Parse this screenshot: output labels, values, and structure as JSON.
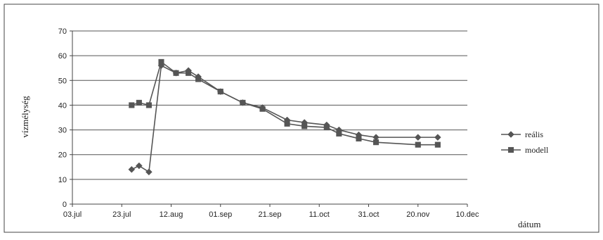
{
  "chart_data": {
    "type": "line",
    "title": "",
    "xlabel": "dátum",
    "ylabel": "vízmélység",
    "ylim": [
      0,
      70
    ],
    "yticks": [
      0,
      10,
      20,
      30,
      40,
      50,
      60,
      70
    ],
    "xlim": [
      "2024-07-03",
      "2024-12-10"
    ],
    "xticks": [
      "2024-07-03",
      "2024-07-23",
      "2024-08-12",
      "2024-09-01",
      "2024-09-21",
      "2024-10-11",
      "2024-10-31",
      "2024-11-20",
      "2024-12-10"
    ],
    "xtick_labels": [
      "03.jul",
      "23.jul",
      "12.aug",
      "01.sep",
      "21.sep",
      "11.oct",
      "31.oct",
      "20.nov",
      "10.dec"
    ],
    "grid": "horizontal",
    "legend_position": "right",
    "series": [
      {
        "name": "reális",
        "marker": "diamond",
        "color": "#555555",
        "points": [
          [
            "2024-07-27",
            14
          ],
          [
            "2024-07-30",
            15.5
          ],
          [
            "2024-08-03",
            13
          ],
          [
            "2024-08-08",
            56
          ],
          [
            "2024-08-14",
            53
          ],
          [
            "2024-08-19",
            54
          ],
          [
            "2024-08-23",
            51.5
          ],
          [
            "2024-09-01",
            45.5
          ],
          [
            "2024-09-10",
            41
          ],
          [
            "2024-09-18",
            39
          ],
          [
            "2024-09-28",
            34
          ],
          [
            "2024-10-05",
            33
          ],
          [
            "2024-10-14",
            32
          ],
          [
            "2024-10-19",
            30
          ],
          [
            "2024-10-27",
            28
          ],
          [
            "2024-11-03",
            27
          ],
          [
            "2024-11-20",
            27
          ],
          [
            "2024-11-28",
            27
          ]
        ]
      },
      {
        "name": "modell",
        "marker": "square",
        "color": "#555555",
        "points": [
          [
            "2024-07-27",
            40
          ],
          [
            "2024-07-30",
            41
          ],
          [
            "2024-08-03",
            40
          ],
          [
            "2024-08-08",
            57.5
          ],
          [
            "2024-08-14",
            53
          ],
          [
            "2024-08-19",
            53
          ],
          [
            "2024-08-23",
            50.5
          ],
          [
            "2024-09-01",
            45.5
          ],
          [
            "2024-09-10",
            41
          ],
          [
            "2024-09-18",
            38.5
          ],
          [
            "2024-09-28",
            32.5
          ],
          [
            "2024-10-05",
            31.5
          ],
          [
            "2024-10-14",
            31
          ],
          [
            "2024-10-19",
            28.5
          ],
          [
            "2024-10-27",
            26.5
          ],
          [
            "2024-11-03",
            25
          ],
          [
            "2024-11-20",
            24
          ],
          [
            "2024-11-28",
            24
          ]
        ]
      }
    ]
  }
}
